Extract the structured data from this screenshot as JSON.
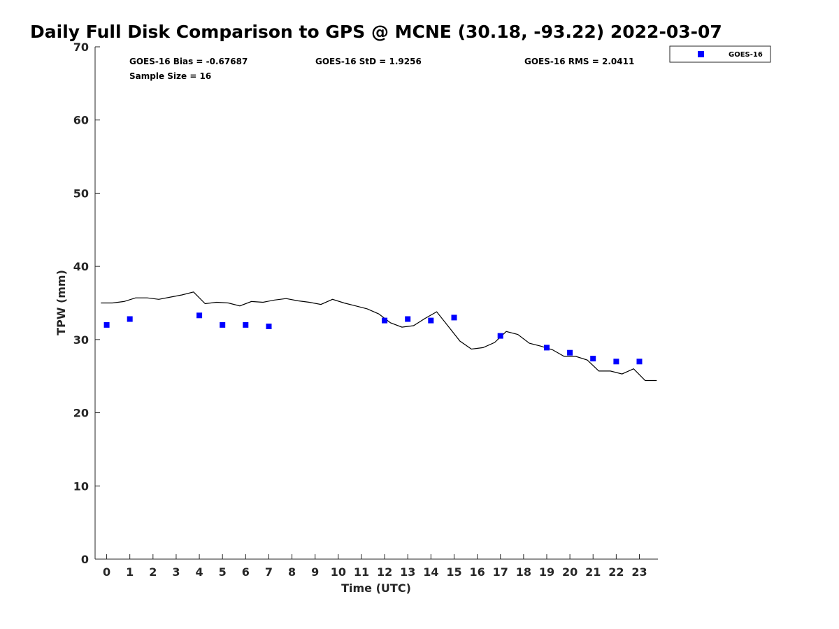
{
  "chart_data": {
    "type": "scatter",
    "title": "Daily Full Disk Comparison to GPS @ MCNE (30.18, -93.22) 2022-03-07",
    "xlabel": "Time (UTC)",
    "ylabel": "TPW (mm)",
    "xlim": [
      -0.5,
      23.8
    ],
    "ylim": [
      0,
      70
    ],
    "x_ticks": [
      0,
      1,
      2,
      3,
      4,
      5,
      6,
      7,
      8,
      9,
      10,
      11,
      12,
      13,
      14,
      15,
      16,
      17,
      18,
      19,
      20,
      21,
      22,
      23
    ],
    "y_ticks": [
      0,
      10,
      20,
      30,
      40,
      50,
      60,
      70
    ],
    "grid": false,
    "legend_position": "top-right",
    "stats": {
      "bias": "GOES-16 Bias = -0.67687",
      "std": "GOES-16 StD = 1.9256",
      "rms": "GOES-16 RMS = 2.0411",
      "sample_size": "Sample Size = 16"
    },
    "series": [
      {
        "name": "GOES-16",
        "kind": "scatter",
        "marker": "square",
        "color": "#0000ff",
        "x": [
          0,
          1,
          4,
          5,
          6,
          7,
          12,
          13,
          14,
          15,
          17,
          19,
          20,
          21,
          22,
          23
        ],
        "y": [
          32.0,
          32.8,
          33.3,
          32.0,
          32.0,
          31.8,
          32.6,
          32.8,
          32.6,
          33.0,
          30.5,
          28.9,
          28.2,
          27.4,
          27.0,
          27.0
        ]
      },
      {
        "kind": "line",
        "color": "#000000",
        "x": [
          -0.25,
          0.25,
          0.75,
          1.25,
          1.75,
          2.25,
          2.75,
          3.25,
          3.75,
          4.25,
          4.75,
          5.25,
          5.75,
          6.25,
          6.75,
          7.25,
          7.75,
          8.25,
          8.75,
          9.25,
          9.75,
          10.25,
          10.75,
          11.25,
          11.75,
          12.25,
          12.75,
          13.25,
          13.75,
          14.25,
          14.75,
          15.25,
          15.75,
          16.25,
          16.75,
          17.25,
          17.75,
          18.25,
          18.75,
          19.25,
          19.75,
          20.25,
          20.75,
          21.25,
          21.75,
          22.25,
          22.75,
          23.25,
          23.75
        ],
        "y": [
          35.0,
          35.0,
          35.2,
          35.7,
          35.7,
          35.5,
          35.8,
          36.1,
          36.5,
          34.9,
          35.1,
          35.0,
          34.6,
          35.2,
          35.1,
          35.4,
          35.6,
          35.3,
          35.1,
          34.8,
          35.5,
          35.0,
          34.6,
          34.2,
          33.5,
          32.3,
          31.7,
          31.9,
          32.9,
          33.8,
          31.8,
          29.8,
          28.7,
          28.9,
          29.6,
          31.1,
          30.7,
          29.5,
          29.1,
          28.6,
          27.7,
          27.7,
          27.2,
          25.7,
          25.7,
          25.3,
          26.0,
          24.4,
          24.4
        ]
      }
    ]
  }
}
